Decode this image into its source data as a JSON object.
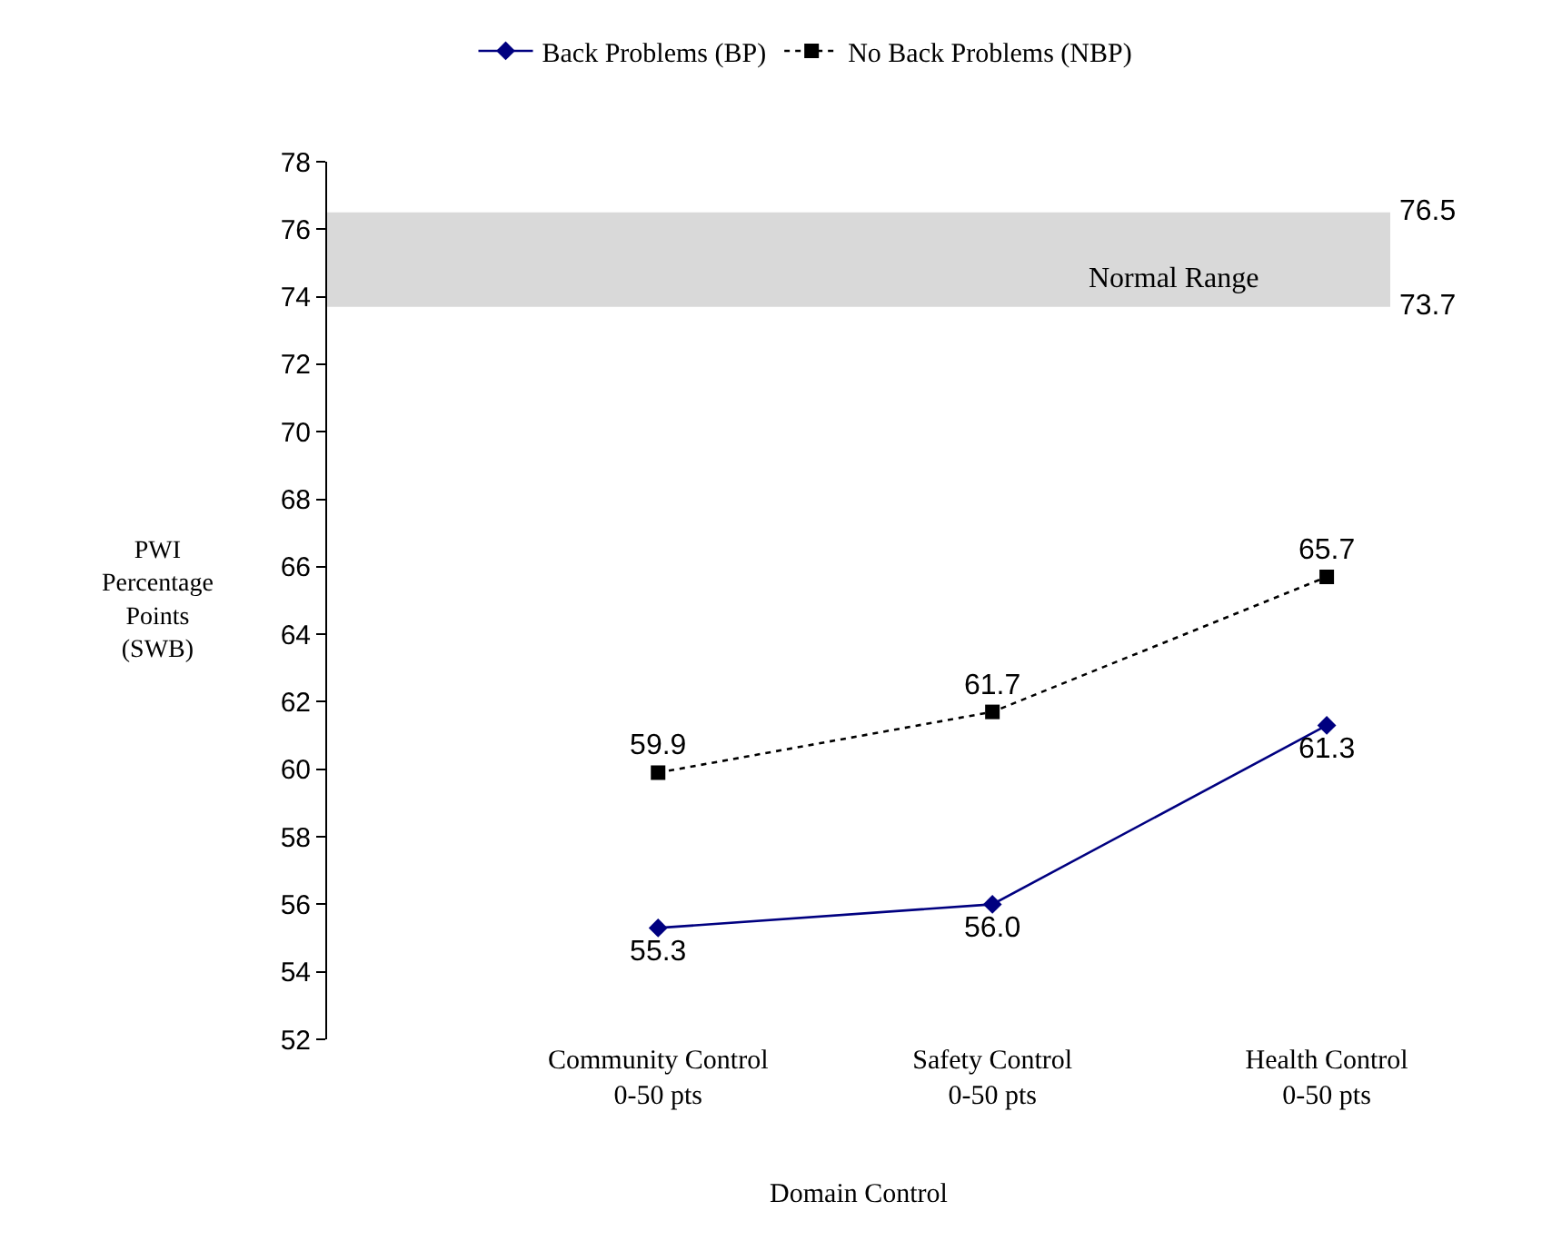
{
  "chart_data": {
    "type": "line",
    "xlabel": "Domain Control",
    "ylabel": "PWI\nPercentage\nPoints\n(SWB)",
    "categories": [
      "Community Control\n0-50 pts",
      "Safety Control\n0-50 pts",
      "Health Control\n0-50 pts"
    ],
    "series": [
      {
        "name": "Back Problems (BP)",
        "color": "#000080",
        "values": [
          55.3,
          56.0,
          61.3
        ],
        "marker": "diamond",
        "line_style": "solid",
        "value_labels": [
          "55.3",
          "56.0",
          "61.3"
        ]
      },
      {
        "name": "No Back Problems (NBP)",
        "color": "#000000",
        "values": [
          59.9,
          61.7,
          65.7
        ],
        "marker": "square",
        "line_style": "dotted",
        "value_labels": [
          "59.9",
          "61.7",
          "65.7"
        ]
      }
    ],
    "ylim": [
      52,
      78
    ],
    "yticks": [
      52,
      54,
      56,
      58,
      60,
      62,
      64,
      66,
      68,
      70,
      72,
      74,
      76,
      78
    ],
    "bands": [
      {
        "axis": "y",
        "from": 73.7,
        "to": 76.5,
        "label": "Normal Range",
        "color": "#d9d9d9"
      }
    ],
    "annotations": [
      "76.5",
      "73.7"
    ],
    "grid": false,
    "legend": "top"
  }
}
